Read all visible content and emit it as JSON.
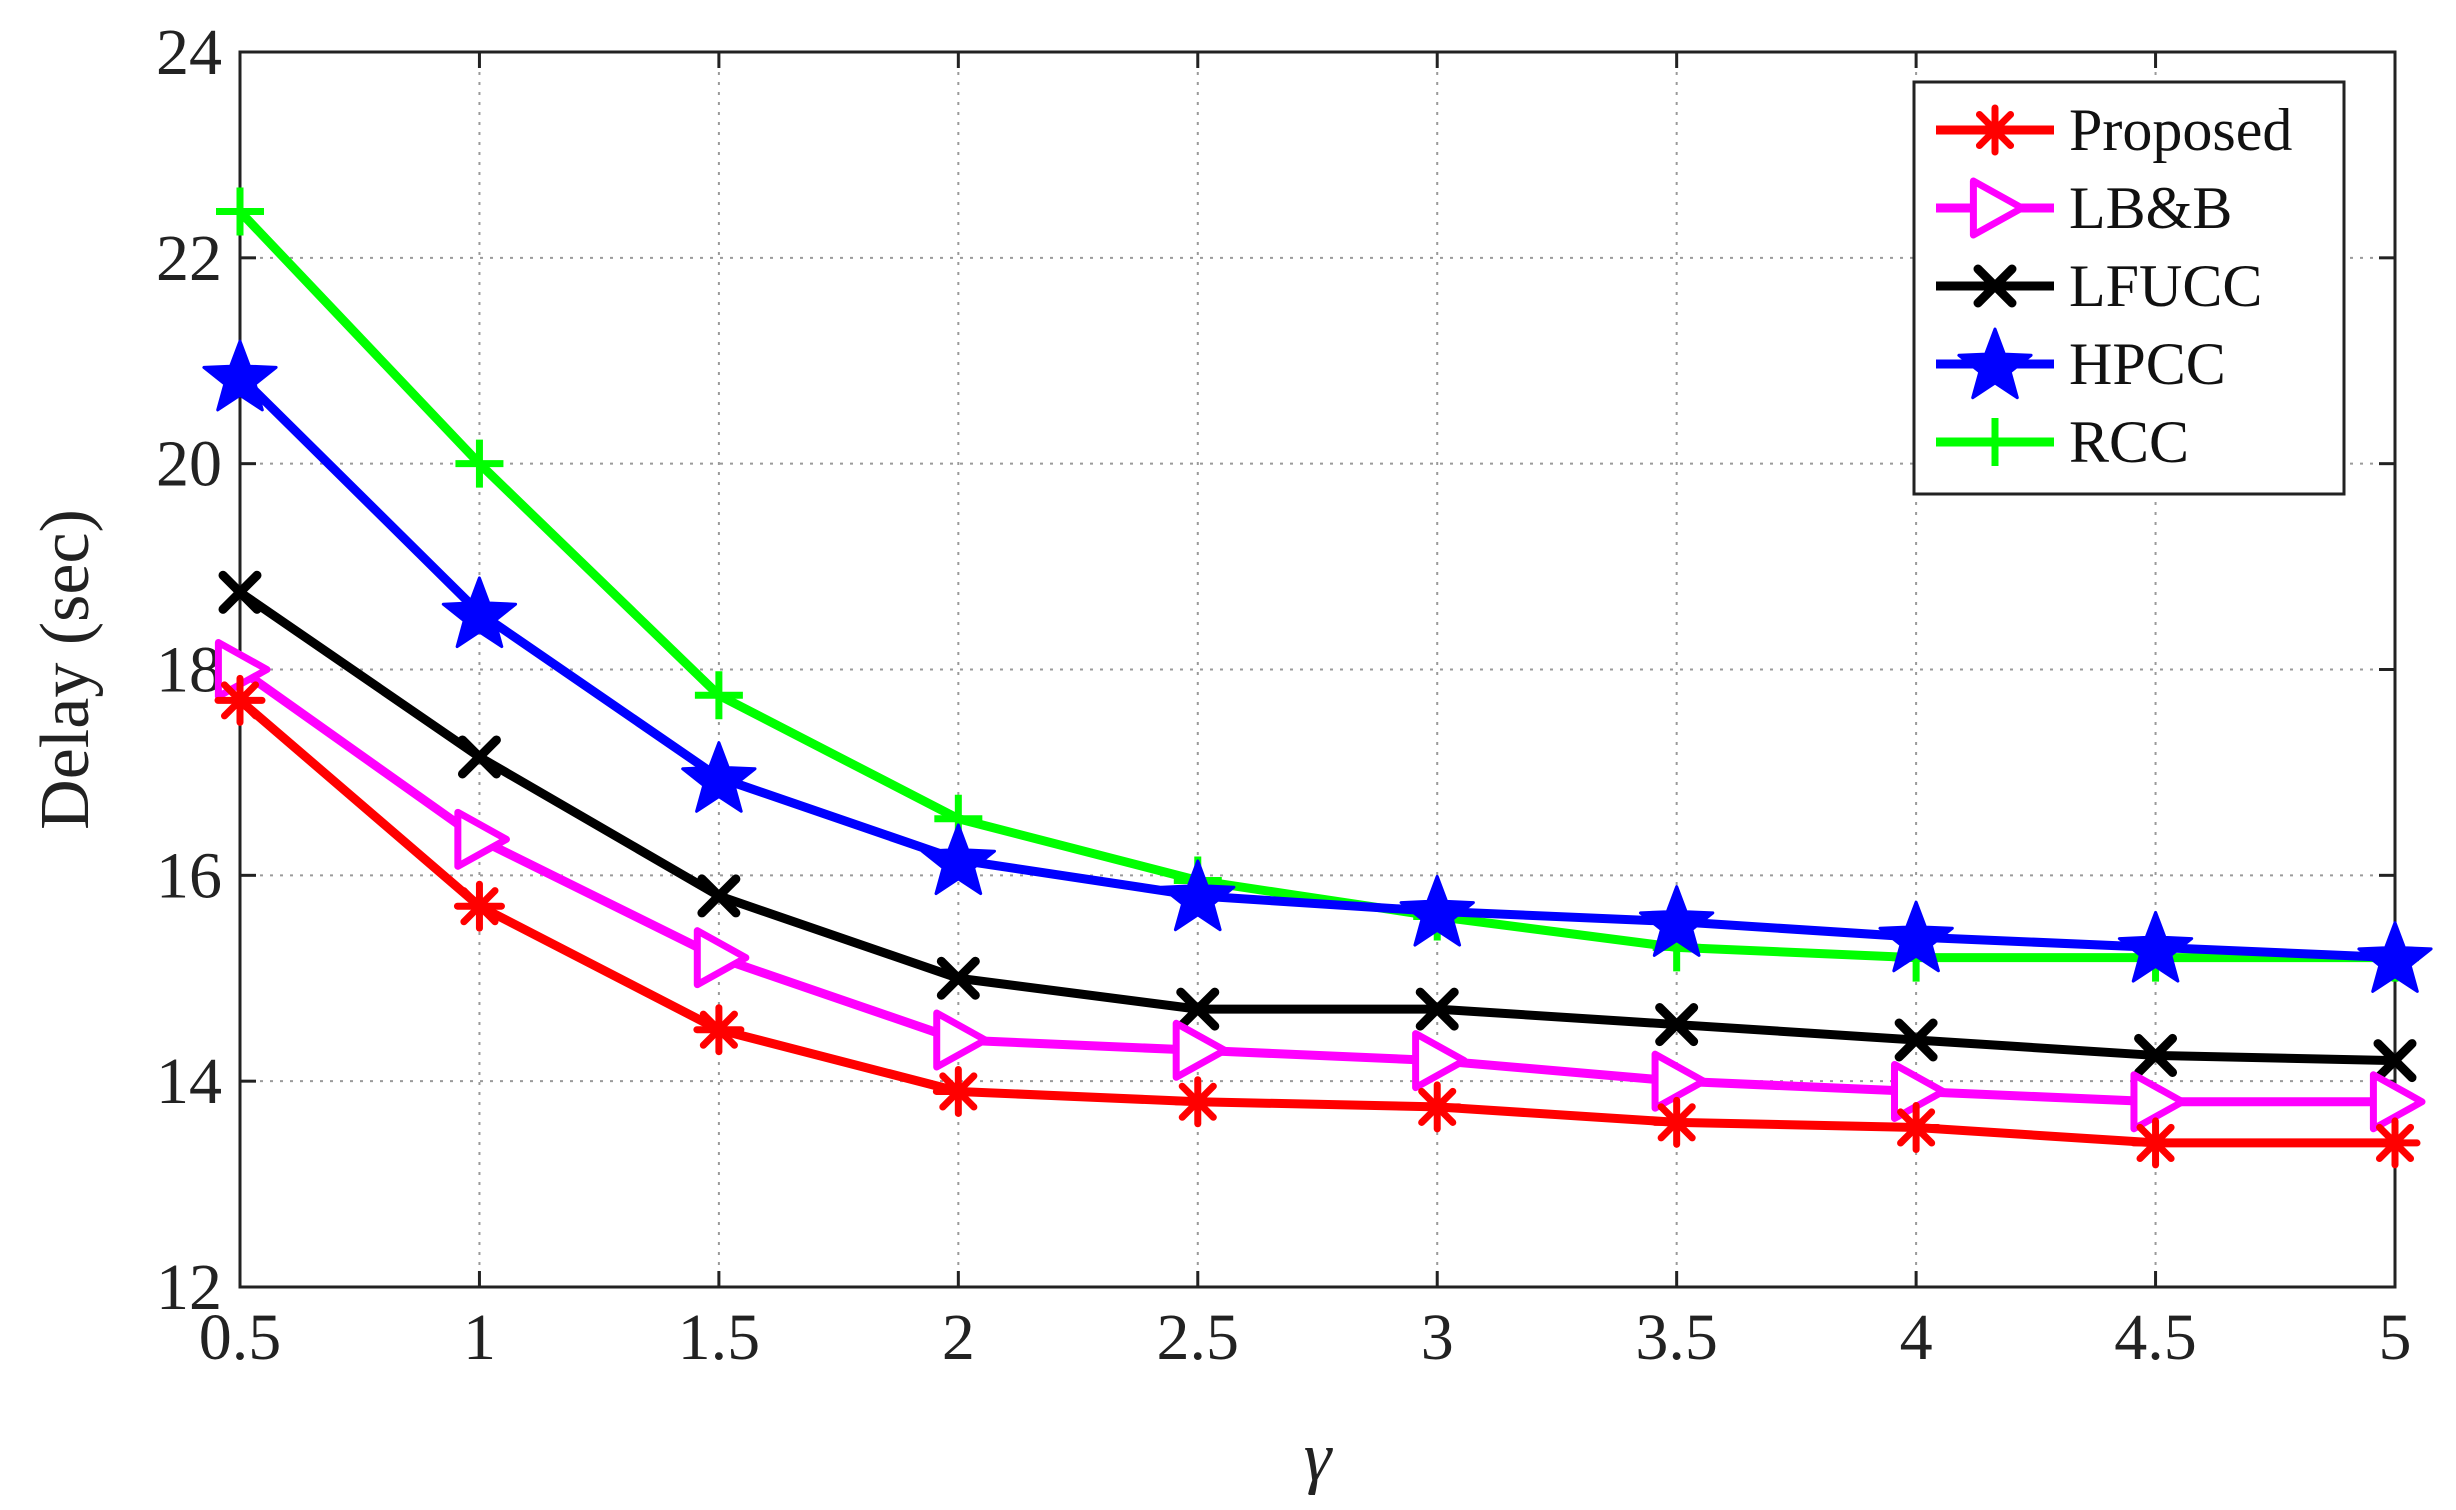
{
  "chart_data": {
    "type": "line",
    "title": "",
    "xlabel": "γ",
    "ylabel": "Delay (sec)",
    "x": [
      0.5,
      1,
      1.5,
      2,
      2.5,
      3,
      3.5,
      4,
      4.5,
      5
    ],
    "xlim": [
      0.5,
      5
    ],
    "ylim": [
      12,
      24
    ],
    "xticks": [
      "0.5",
      "1",
      "1.5",
      "2",
      "2.5",
      "3",
      "3.5",
      "4",
      "4.5",
      "5"
    ],
    "yticks": [
      "12",
      "14",
      "16",
      "18",
      "20",
      "22",
      "24"
    ],
    "grid": true,
    "legend_position": "top-right",
    "series": [
      {
        "name": "Proposed",
        "color": "#ff0000",
        "marker": "asterisk",
        "values": [
          17.7,
          15.7,
          14.5,
          13.9,
          13.8,
          13.75,
          13.6,
          13.55,
          13.4,
          13.4
        ]
      },
      {
        "name": "LB&B",
        "color": "#ff00ff",
        "marker": "triangle-right",
        "values": [
          18.0,
          16.35,
          15.2,
          14.4,
          14.3,
          14.2,
          14.0,
          13.9,
          13.8,
          13.8
        ]
      },
      {
        "name": "LFUCC",
        "color": "#000000",
        "marker": "x",
        "values": [
          18.75,
          17.15,
          15.8,
          15.0,
          14.7,
          14.7,
          14.55,
          14.4,
          14.25,
          14.2
        ]
      },
      {
        "name": "HPCC",
        "color": "#0000ff",
        "marker": "star",
        "values": [
          20.85,
          18.55,
          16.95,
          16.15,
          15.8,
          15.65,
          15.55,
          15.4,
          15.3,
          15.2
        ]
      },
      {
        "name": "RCC",
        "color": "#00ff00",
        "marker": "plus",
        "values": [
          22.45,
          20.0,
          17.75,
          16.55,
          15.95,
          15.6,
          15.3,
          15.2,
          15.2,
          15.2
        ]
      }
    ]
  }
}
